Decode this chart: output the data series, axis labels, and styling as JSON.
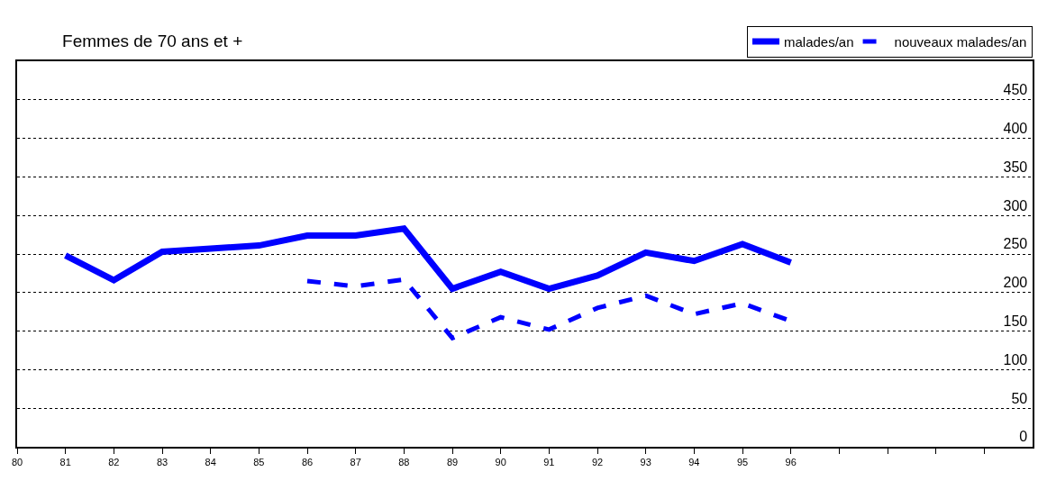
{
  "chart_data": {
    "type": "line",
    "title": "Femmes de 70 ans et +",
    "x": [
      81,
      82,
      83,
      84,
      85,
      86,
      87,
      88,
      89,
      90,
      91,
      92,
      93,
      94,
      95,
      96
    ],
    "series": [
      {
        "name": "malades/an",
        "color": "#0000ff",
        "line_style": "solid",
        "values": [
          248,
          216,
          253,
          257,
          261,
          274,
          274,
          283,
          205,
          227,
          205,
          222,
          252,
          241,
          263,
          239
        ]
      },
      {
        "name": "nouveaux malades/an",
        "color": "#0000ff",
        "line_style": "dashed",
        "values": [
          null,
          null,
          null,
          null,
          null,
          215,
          208,
          217,
          141,
          168,
          152,
          180,
          196,
          172,
          186,
          163
        ]
      }
    ],
    "xlim": [
      80,
      101
    ],
    "xticks": [
      80,
      81,
      82,
      83,
      84,
      85,
      86,
      87,
      88,
      89,
      90,
      91,
      92,
      93,
      94,
      95,
      96,
      {
        "value": 97,
        "label": null
      },
      {
        "value": 98,
        "label": null
      },
      {
        "value": 99,
        "label": null
      },
      {
        "value": 100,
        "label": null
      }
    ],
    "ylim": [
      0,
      500
    ],
    "yticks": [
      0,
      50,
      100,
      150,
      200,
      250,
      300,
      350,
      400,
      450
    ],
    "grid": "y",
    "legend": "top right",
    "marker": "none"
  }
}
